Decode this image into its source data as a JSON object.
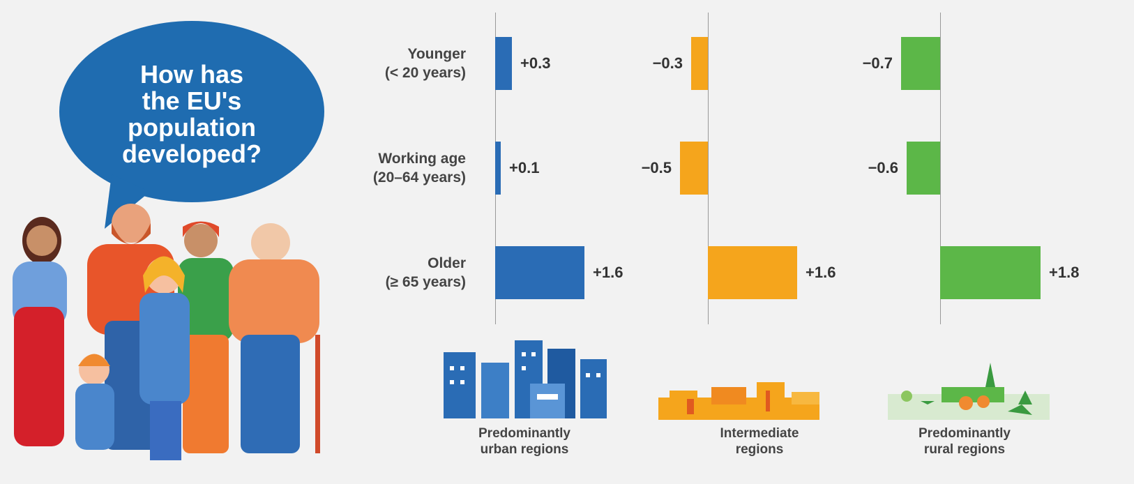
{
  "chart_data": {
    "type": "bar",
    "title": "How has\nthe EU's\npopulation\ndeveloped?",
    "categories": [
      "Younger\n(< 20 years)",
      "Working age\n(20–64 years)",
      "Older\n(≥ 65 years)"
    ],
    "series": [
      {
        "name": "Predominantly\nurban regions",
        "color": "#2a6cb5",
        "values": [
          0.3,
          0.1,
          1.6
        ],
        "value_labels": [
          "+0.3",
          "+0.1",
          "+1.6"
        ]
      },
      {
        "name": "Intermediate\nregions",
        "color": "#f5a51c",
        "values": [
          -0.3,
          -0.5,
          1.6
        ],
        "value_labels": [
          "−0.3",
          "−0.5",
          "+1.6"
        ]
      },
      {
        "name": "Predominantly\nrural regions",
        "color": "#5cb748",
        "values": [
          -0.7,
          -0.6,
          1.8
        ],
        "value_labels": [
          "−0.7",
          "−0.6",
          "+1.8"
        ]
      }
    ]
  }
}
